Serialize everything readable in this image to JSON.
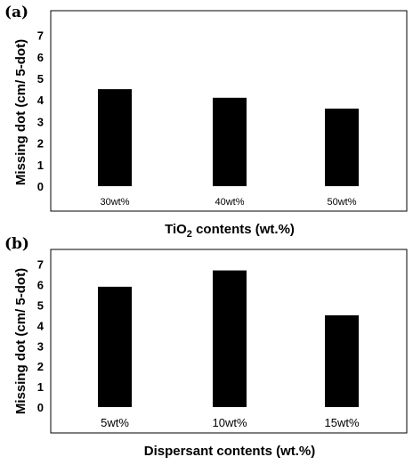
{
  "chart_data": [
    {
      "type": "bar",
      "panel_label": "(a)",
      "categories": [
        "30wt%",
        "40wt%",
        "50wt%"
      ],
      "values": [
        4.5,
        4.1,
        3.6
      ],
      "ylabel": "Missing dot (cm/ 5-dot)",
      "xlabel_main": "TiO",
      "xlabel_sub": "2",
      "xlabel_rest": " contents (wt.%)",
      "yticks": [
        0,
        1,
        2,
        3,
        4,
        5,
        6,
        7
      ],
      "ylim": [
        -1.2,
        7.4
      ],
      "grid": false,
      "bar_color": "#000000"
    },
    {
      "type": "bar",
      "panel_label": "(b)",
      "categories": [
        "5wt%",
        "10wt%",
        "15wt%"
      ],
      "values": [
        5.9,
        6.7,
        4.5
      ],
      "ylabel": "Missing dot (cm/ 5-dot)",
      "xlabel": "Dispersant contents (wt.%)",
      "yticks": [
        0,
        1,
        2,
        3,
        4,
        5,
        6,
        7
      ],
      "ylim": [
        -1.2,
        7.4
      ],
      "grid": false,
      "bar_color": "#000000"
    }
  ]
}
